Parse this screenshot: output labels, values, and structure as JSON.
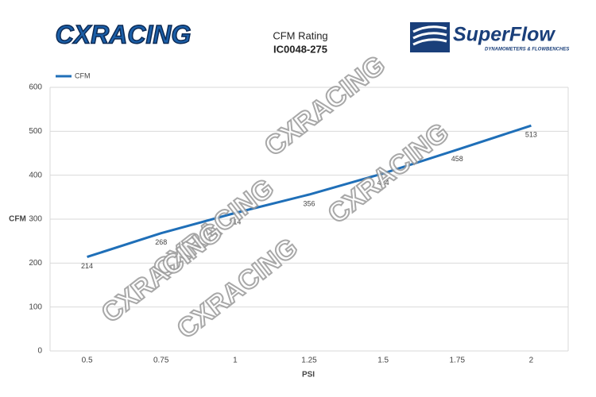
{
  "chart_data": {
    "type": "line",
    "title": "CFM Rating",
    "subtitle": "IC0048-275",
    "brand_logo": "CXRACING",
    "partner_logo": "SuperFlow",
    "partner_tagline": "DYNAMOMETERS & FLOWBENCHES",
    "watermark": "CXRACING",
    "x_label": "PSI",
    "y_label": "CFM",
    "categories": [
      "0.5",
      "0.75",
      "1",
      "1.25",
      "1.5",
      "1.75",
      "2"
    ],
    "series": [
      {
        "name": "CFM",
        "color": "#1f6fb8",
        "values": [
          214,
          268,
          314,
          356,
          404,
          458,
          513
        ]
      }
    ],
    "ylim": [
      0,
      600
    ],
    "yticks": [
      0,
      100,
      200,
      300,
      400,
      500,
      600
    ],
    "grid": true,
    "legend": "top-left"
  }
}
